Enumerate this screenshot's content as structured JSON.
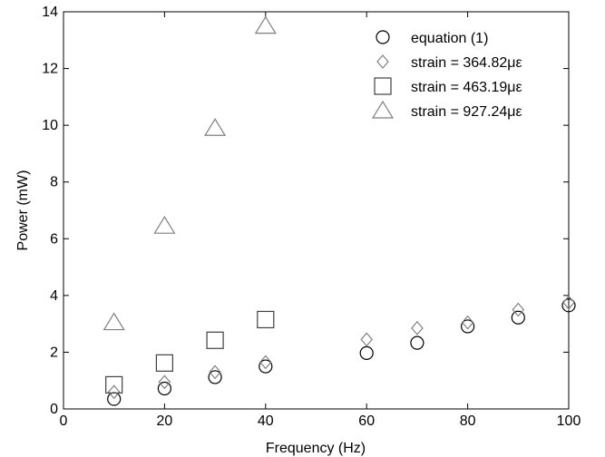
{
  "chart_data": {
    "type": "scatter",
    "title": "",
    "xlabel": "Frequency (Hz)",
    "ylabel": "Power (mW)",
    "xlim": [
      0,
      100
    ],
    "ylim": [
      0,
      14
    ],
    "x_ticks": [
      "0",
      "20",
      "40",
      "60",
      "80",
      "100"
    ],
    "y_ticks": [
      "0",
      "2",
      "4",
      "6",
      "8",
      "10",
      "12",
      "14"
    ],
    "grid": false,
    "legend_position": "top-right",
    "series": [
      {
        "name": "equation (1)",
        "marker": "circle",
        "color": "#000000",
        "x": [
          10,
          20,
          30,
          40,
          60,
          70,
          80,
          90,
          100
        ],
        "y": [
          0.35,
          0.72,
          1.12,
          1.5,
          1.97,
          2.33,
          2.91,
          3.22,
          3.65
        ]
      },
      {
        "name": "strain = 364.82με",
        "marker": "diamond",
        "color": "#808080",
        "x": [
          10,
          20,
          30,
          40,
          60,
          70,
          80,
          90,
          100
        ],
        "y": [
          0.6,
          0.95,
          1.3,
          1.65,
          2.45,
          2.85,
          3.05,
          3.5,
          3.75
        ]
      },
      {
        "name": "strain = 463.19με",
        "marker": "square",
        "color": "#404040",
        "x": [
          10,
          20,
          30,
          40
        ],
        "y": [
          0.85,
          1.62,
          2.42,
          3.15
        ]
      },
      {
        "name": "strain = 927.24με",
        "marker": "triangle",
        "color": "#808080",
        "x": [
          10,
          20,
          30,
          40
        ],
        "y": [
          3.05,
          6.45,
          9.9,
          13.5
        ]
      }
    ]
  }
}
